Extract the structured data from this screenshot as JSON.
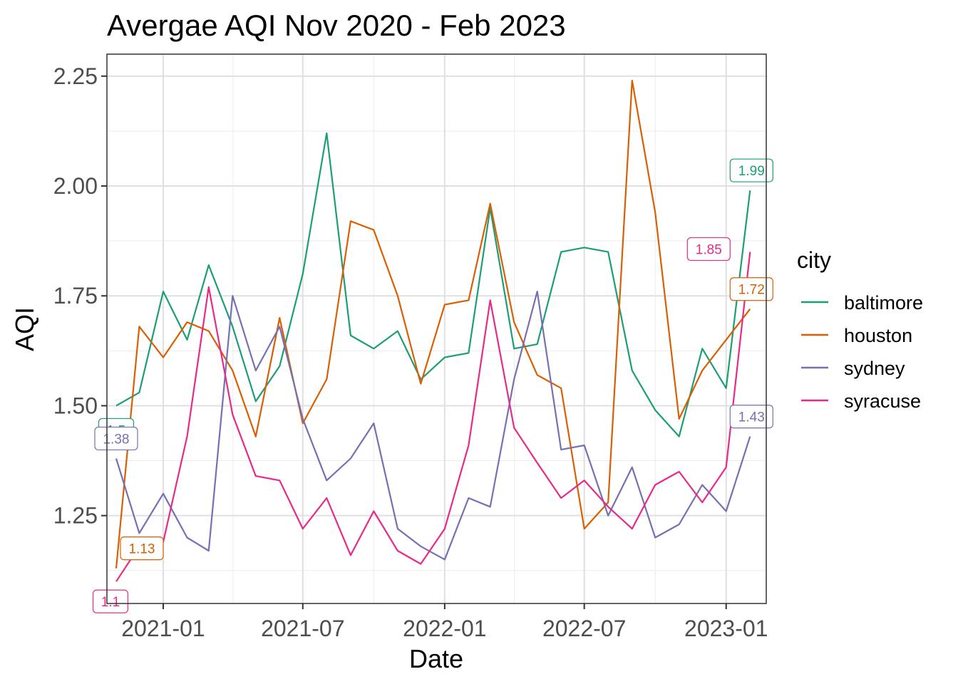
{
  "chart_data": {
    "type": "line",
    "title": "Avergae AQI Nov 2020 - Feb 2023",
    "xlabel": "Date",
    "ylabel": "AQI",
    "legend_title": "city",
    "legend_position": "right",
    "grid": true,
    "x_ticks": [
      "2021-01",
      "2021-07",
      "2022-01",
      "2022-07",
      "2023-01"
    ],
    "y_ticks": [
      "1.25",
      "1.50",
      "1.75",
      "2.00",
      "2.25"
    ],
    "ylim": [
      1.05,
      2.3
    ],
    "xlim": [
      "2020-10-20",
      "2023-02-22"
    ],
    "x": [
      "2020-11",
      "2020-12",
      "2021-01",
      "2021-02",
      "2021-03",
      "2021-04",
      "2021-05",
      "2021-06",
      "2021-07",
      "2021-08",
      "2021-09",
      "2021-10",
      "2021-11",
      "2021-12",
      "2022-01",
      "2022-02",
      "2022-03",
      "2022-04",
      "2022-05",
      "2022-06",
      "2022-07",
      "2022-08",
      "2022-09",
      "2022-10",
      "2022-11",
      "2022-12",
      "2023-01",
      "2023-02"
    ],
    "series": [
      {
        "name": "baltimore",
        "color": "#1b9e77",
        "values": [
          1.5,
          1.53,
          1.76,
          1.65,
          1.82,
          1.68,
          1.51,
          1.59,
          1.8,
          2.12,
          1.66,
          1.63,
          1.67,
          1.56,
          1.61,
          1.62,
          1.95,
          1.63,
          1.64,
          1.85,
          1.86,
          1.85,
          1.58,
          1.49,
          1.43,
          1.63,
          1.54,
          1.99
        ],
        "start_label": "1.5",
        "end_label": "1.99"
      },
      {
        "name": "houston",
        "color": "#d95f02",
        "values": [
          1.13,
          1.68,
          1.61,
          1.69,
          1.67,
          1.58,
          1.43,
          1.7,
          1.46,
          1.56,
          1.92,
          1.9,
          1.75,
          1.55,
          1.73,
          1.74,
          1.96,
          1.69,
          1.57,
          1.54,
          1.22,
          1.28,
          2.24,
          1.94,
          1.47,
          1.58,
          1.65,
          1.72
        ],
        "start_label": "1.13",
        "end_label": "1.72"
      },
      {
        "name": "sydney",
        "color": "#7570b3",
        "values": [
          1.38,
          1.21,
          1.3,
          1.2,
          1.17,
          1.75,
          1.58,
          1.68,
          1.47,
          1.33,
          1.38,
          1.46,
          1.22,
          1.18,
          1.15,
          1.29,
          1.27,
          1.56,
          1.76,
          1.4,
          1.41,
          1.25,
          1.36,
          1.2,
          1.23,
          1.32,
          1.26,
          1.43
        ],
        "start_label": "1.38",
        "end_label": "1.43"
      },
      {
        "name": "syracuse",
        "color": "#e7298a",
        "values": [
          1.1,
          1.18,
          1.19,
          1.43,
          1.77,
          1.48,
          1.34,
          1.33,
          1.22,
          1.29,
          1.16,
          1.26,
          1.17,
          1.14,
          1.22,
          1.41,
          1.74,
          1.45,
          1.37,
          1.29,
          1.33,
          1.27,
          1.22,
          1.32,
          1.35,
          1.28,
          1.36,
          1.85
        ],
        "start_label": "1.1",
        "end_label": "1.85"
      }
    ]
  }
}
